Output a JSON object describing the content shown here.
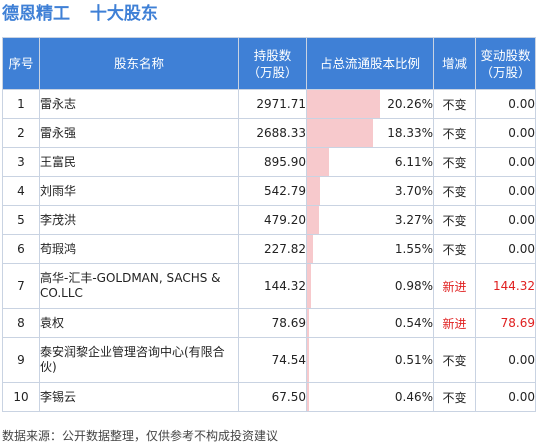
{
  "title": {
    "stock": "德恩精工",
    "section": "十大股东"
  },
  "headers": {
    "rank": "序号",
    "name": "股东名称",
    "shares": "持股数\n（万股）",
    "ratio": "占总流通股本比例",
    "change": "增减",
    "delta": "变动股数\n（万股）"
  },
  "rows": [
    {
      "rank": "1",
      "name": "雷永志",
      "shares": "2971.71",
      "ratio_pct": 20.26,
      "ratio": "20.26%",
      "change": "不变",
      "delta": "0.00",
      "is_new": false
    },
    {
      "rank": "2",
      "name": "雷永强",
      "shares": "2688.33",
      "ratio_pct": 18.33,
      "ratio": "18.33%",
      "change": "不变",
      "delta": "0.00",
      "is_new": false
    },
    {
      "rank": "3",
      "name": "王富民",
      "shares": "895.90",
      "ratio_pct": 6.11,
      "ratio": "6.11%",
      "change": "不变",
      "delta": "0.00",
      "is_new": false
    },
    {
      "rank": "4",
      "name": "刘雨华",
      "shares": "542.79",
      "ratio_pct": 3.7,
      "ratio": "3.70%",
      "change": "不变",
      "delta": "0.00",
      "is_new": false
    },
    {
      "rank": "5",
      "name": "李茂洪",
      "shares": "479.20",
      "ratio_pct": 3.27,
      "ratio": "3.27%",
      "change": "不变",
      "delta": "0.00",
      "is_new": false
    },
    {
      "rank": "6",
      "name": "苟瑕鸿",
      "shares": "227.82",
      "ratio_pct": 1.55,
      "ratio": "1.55%",
      "change": "不变",
      "delta": "0.00",
      "is_new": false
    },
    {
      "rank": "7",
      "name": "高华-汇丰-GOLDMAN, SACHS & CO.LLC",
      "shares": "144.32",
      "ratio_pct": 0.98,
      "ratio": "0.98%",
      "change": "新进",
      "delta": "144.32",
      "is_new": true
    },
    {
      "rank": "8",
      "name": "袁权",
      "shares": "78.69",
      "ratio_pct": 0.54,
      "ratio": "0.54%",
      "change": "新进",
      "delta": "78.69",
      "is_new": true
    },
    {
      "rank": "9",
      "name": "泰安润黎企业管理咨询中心(有限合伙)",
      "shares": "74.54",
      "ratio_pct": 0.51,
      "ratio": "0.51%",
      "change": "不变",
      "delta": "0.00",
      "is_new": false
    },
    {
      "rank": "10",
      "name": "李锡云",
      "shares": "67.50",
      "ratio_pct": 0.46,
      "ratio": "0.46%",
      "change": "不变",
      "delta": "0.00",
      "is_new": false
    }
  ],
  "footer": "数据来源：公开数据整理，仅供参考不构成投资建议"
}
